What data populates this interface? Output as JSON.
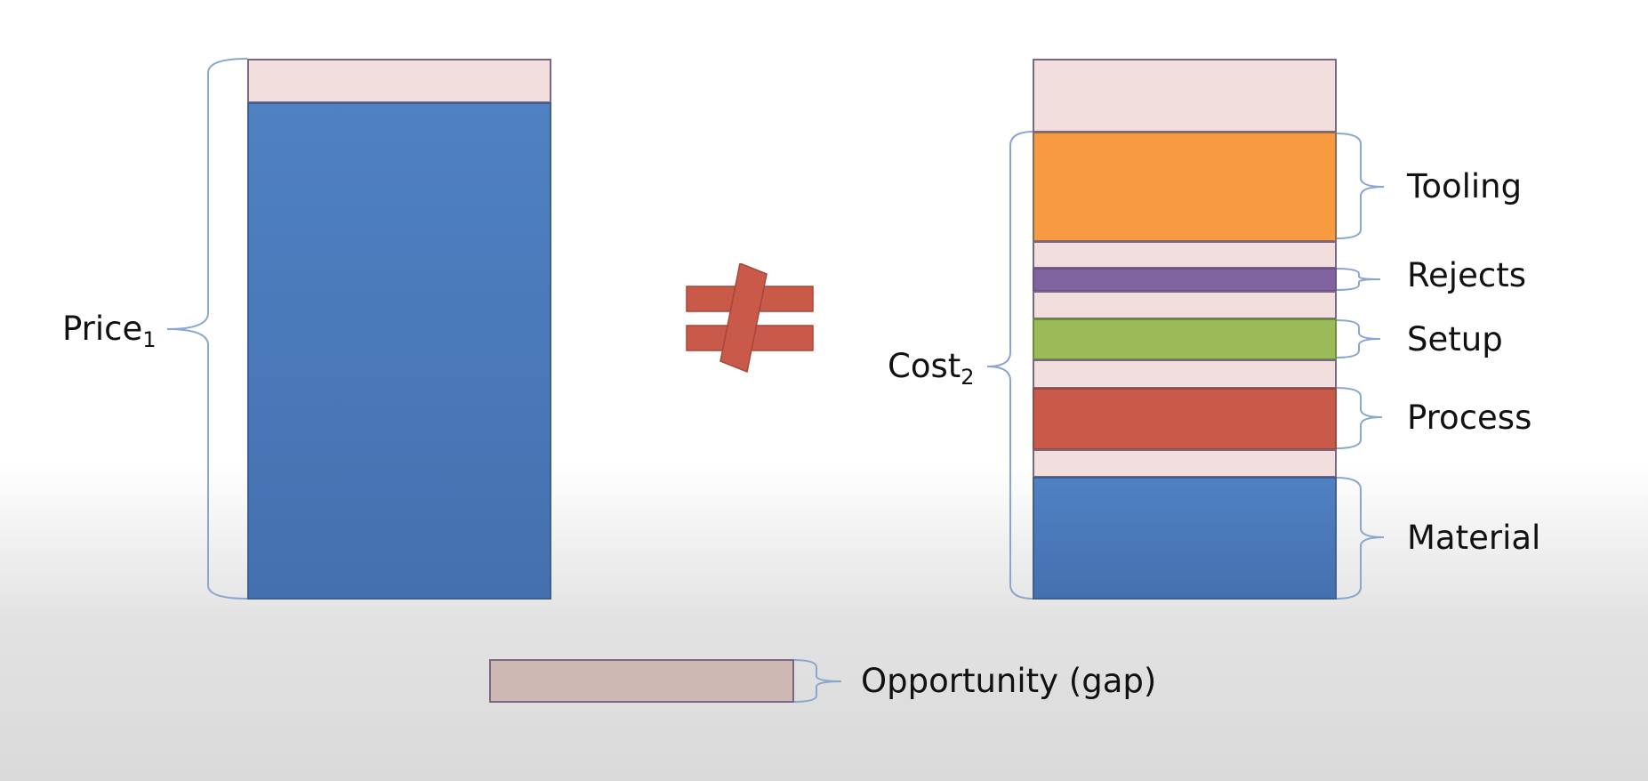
{
  "diagram": {
    "left_label": {
      "main": "Price",
      "sub": "1"
    },
    "right_label": {
      "main": "Cost",
      "sub": "2"
    },
    "components": [
      {
        "name": "Tooling",
        "color": "#f79a42"
      },
      {
        "name": "Rejects",
        "color": "#8064a2"
      },
      {
        "name": "Setup",
        "color": "#9bbb59"
      },
      {
        "name": "Process",
        "color": "#c95a4a"
      },
      {
        "name": "Material",
        "color": "#4a7ebe"
      }
    ],
    "legend": {
      "label": "Opportunity (gap)",
      "color": "#cdb8b4"
    },
    "not_equal_color": "#c95a4a",
    "gap_color": "#f2dedd",
    "price_color": "#4a7ebe"
  }
}
